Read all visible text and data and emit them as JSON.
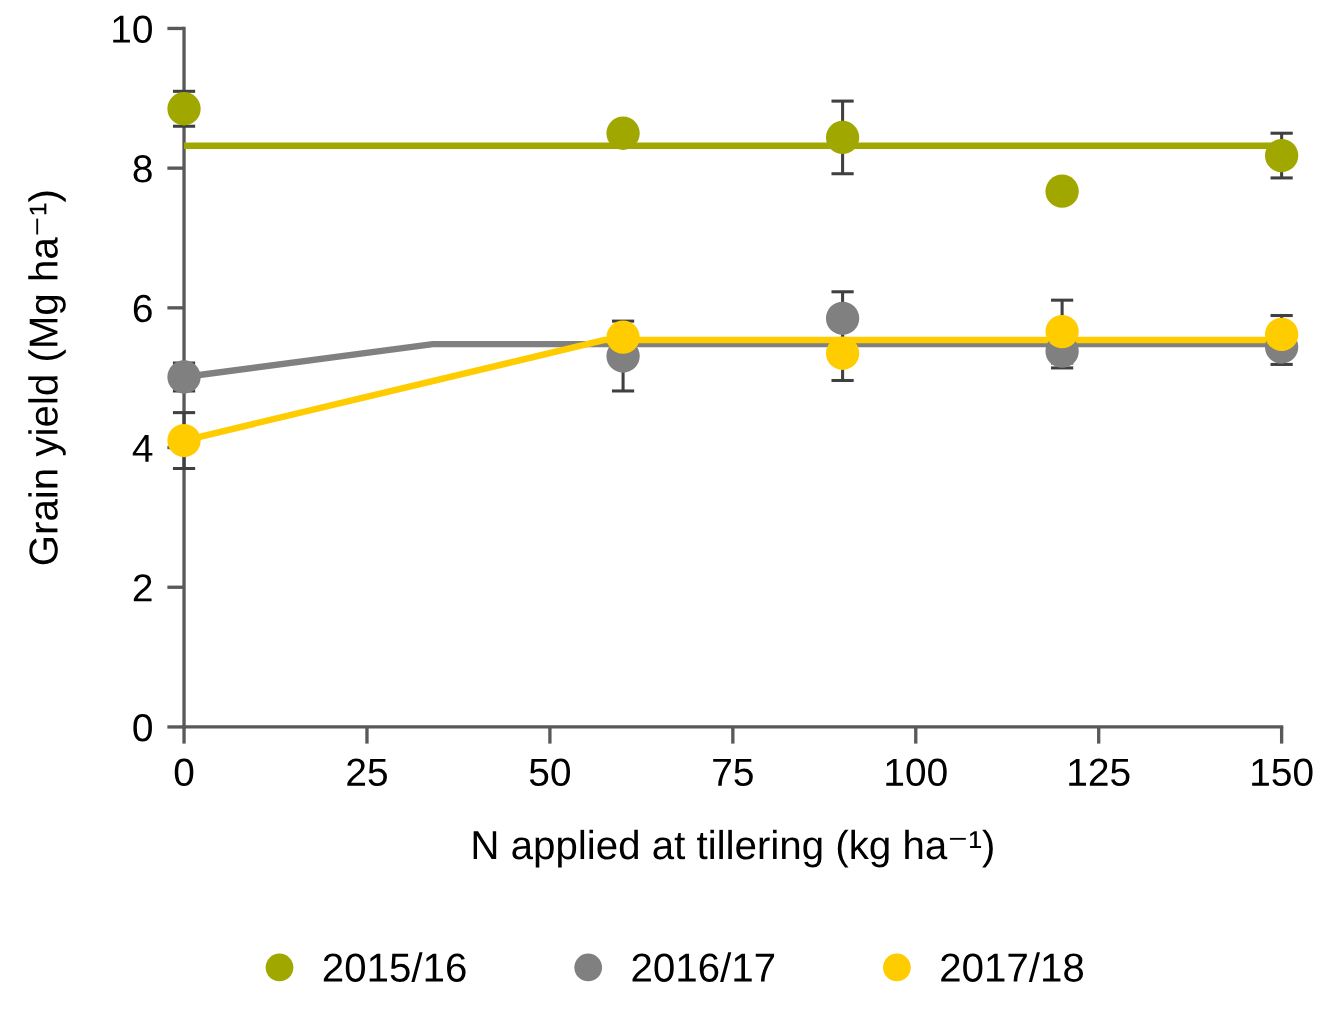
{
  "chart_data": {
    "type": "scatter",
    "xlabel": "N applied at tillering (kg ha⁻¹)",
    "ylabel": "Grain yield (Mg ha⁻¹)",
    "xlim": [
      0,
      150
    ],
    "ylim": [
      0,
      10
    ],
    "xticks": [
      0,
      25,
      50,
      75,
      100,
      125,
      150
    ],
    "yticks": [
      0,
      2,
      4,
      6,
      8,
      10
    ],
    "legend": "bottom",
    "marker": "circle",
    "series": [
      {
        "type": "line",
        "color": "#a0a800",
        "x": [
          0,
          150
        ],
        "values": [
          8.32,
          8.32
        ],
        "marker": "none"
      },
      {
        "type": "line",
        "color": "#808080",
        "x": [
          0,
          34,
          150
        ],
        "values": [
          5.01,
          5.48,
          5.48
        ],
        "marker": "none"
      },
      {
        "type": "line",
        "color": "#ffcc00",
        "x": [
          0,
          57.5,
          150
        ],
        "values": [
          4.1,
          5.54,
          5.54
        ],
        "marker": "none"
      },
      {
        "name": "2015/16",
        "color": "#a0a800",
        "x": [
          0,
          60,
          90,
          120,
          150
        ],
        "values": [
          8.85,
          8.5,
          8.44,
          7.67,
          8.18
        ],
        "errors": [
          0.25,
          null,
          0.52,
          null,
          0.32
        ]
      },
      {
        "name": "2016/17",
        "color": "#808080",
        "x": [
          0,
          60,
          90,
          120,
          150
        ],
        "values": [
          5.01,
          5.31,
          5.85,
          5.38,
          5.44
        ],
        "errors": [
          0.2,
          0.5,
          0.38,
          0.24,
          0.25
        ]
      },
      {
        "name": "2017/18",
        "color": "#ffcc00",
        "x": [
          0,
          60,
          90,
          120,
          150
        ],
        "values": [
          4.1,
          5.58,
          5.35,
          5.66,
          5.62
        ],
        "errors": [
          0.4,
          null,
          0.39,
          0.45,
          0.27
        ]
      }
    ]
  }
}
